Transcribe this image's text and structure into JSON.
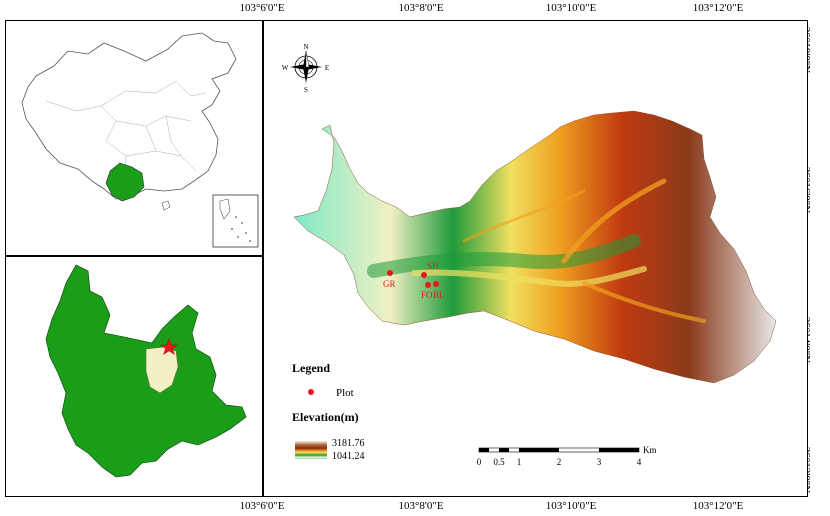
{
  "coordinates": {
    "longitudes": [
      "103°6'0\"E",
      "103°8'0\"E",
      "103°10'0\"E",
      "103°12'0\"E"
    ],
    "latitudes": [
      "26°18'0\"N",
      "26°16'0\"N",
      "26°14'0\"N",
      "26°12'0\"N"
    ]
  },
  "compass": {
    "north": "N",
    "south": "S",
    "east": "E",
    "west": "W"
  },
  "plots": [
    {
      "label": "GR"
    },
    {
      "label": "SH"
    },
    {
      "label": "FO"
    },
    {
      "label": "BL"
    }
  ],
  "legend": {
    "title": "Legend",
    "plot_label": "Plot",
    "elevation_title": "Elevation(m)",
    "elevation_max": "3181.76",
    "elevation_min": "1041.24"
  },
  "scale_bar": {
    "ticks": [
      "0",
      "0.5",
      "1",
      "2",
      "3",
      "4"
    ],
    "unit": "Km"
  },
  "colors": {
    "province_fill": "#1a9e1a",
    "study_area_fill": "#f2f0c4",
    "plot_marker": "#e41a1c",
    "plot_label": "#e41a1c",
    "elevation_ramp": [
      "#f2f2f2",
      "#b05a1e",
      "#c03a10",
      "#f0a020",
      "#f0e060",
      "#1e9a3a",
      "#7fe8c8"
    ]
  }
}
